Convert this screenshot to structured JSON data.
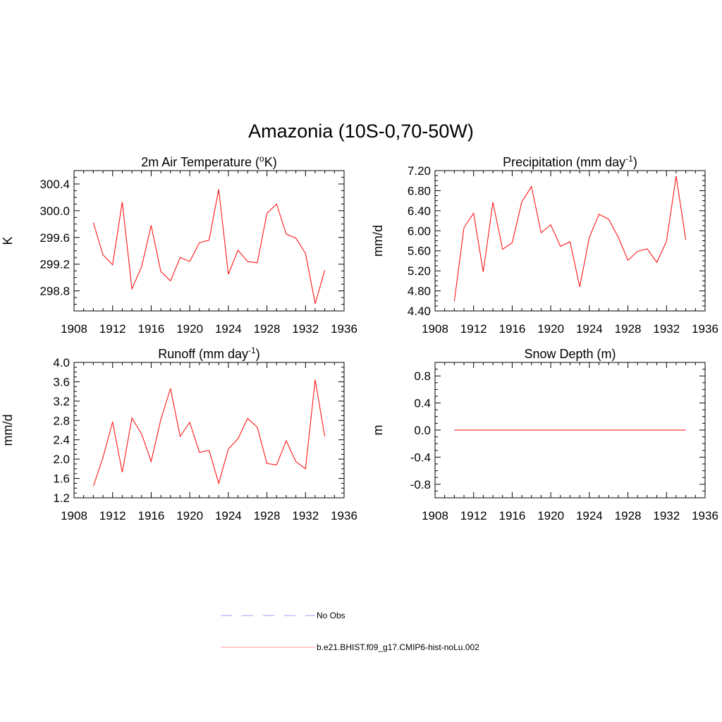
{
  "figure_title": "Amazonia (10S-0,70-50W)",
  "colors": {
    "model": "#ff0000",
    "obs": "#a0a0ff"
  },
  "legend": [
    {
      "label": "No Obs",
      "style": "dashed",
      "color": "#a0a0ff"
    },
    {
      "label": "b.e21.BHIST.f09_g17.CMIP6-hist-noLu.002",
      "style": "solid",
      "color": "#ff9a9a"
    }
  ],
  "chart_data": [
    {
      "type": "line",
      "title": "2m Air Temperature (",
      "title_super": "o",
      "title_after": "K)",
      "ylabel": "K",
      "xlim": [
        1908,
        1936
      ],
      "ylim": [
        298.5,
        300.6
      ],
      "xticks": [
        "1908",
        "1912",
        "1916",
        "1920",
        "1924",
        "1928",
        "1932",
        "1936"
      ],
      "yticks": [
        "298.8",
        "299.2",
        "299.6",
        "300.0",
        "300.4"
      ],
      "x": [
        1910,
        1911,
        1912,
        1913,
        1914,
        1915,
        1916,
        1917,
        1918,
        1919,
        1920,
        1921,
        1922,
        1923,
        1924,
        1925,
        1926,
        1927,
        1928,
        1929,
        1930,
        1931,
        1932,
        1933,
        1934
      ],
      "values": [
        299.82,
        299.34,
        299.19,
        300.13,
        298.83,
        299.16,
        299.78,
        299.09,
        298.95,
        299.3,
        299.24,
        299.52,
        299.56,
        300.32,
        299.05,
        299.41,
        299.24,
        299.22,
        299.96,
        300.1,
        299.65,
        299.59,
        299.36,
        298.61,
        299.11
      ]
    },
    {
      "type": "line",
      "title": "Precipitation (mm day",
      "title_super": "-1",
      "title_after": ")",
      "ylabel": "mm/d",
      "xlim": [
        1908,
        1936
      ],
      "ylim": [
        4.4,
        7.2
      ],
      "xticks": [
        "1908",
        "1912",
        "1916",
        "1920",
        "1924",
        "1928",
        "1932",
        "1936"
      ],
      "yticks": [
        "4.40",
        "4.80",
        "5.20",
        "5.60",
        "6.00",
        "6.40",
        "6.80",
        "7.20"
      ],
      "x": [
        1910,
        1911,
        1912,
        1913,
        1914,
        1915,
        1916,
        1917,
        1918,
        1919,
        1920,
        1921,
        1922,
        1923,
        1924,
        1925,
        1926,
        1927,
        1928,
        1929,
        1930,
        1931,
        1932,
        1933,
        1934
      ],
      "values": [
        4.6,
        6.06,
        6.35,
        5.18,
        6.57,
        5.63,
        5.76,
        6.58,
        6.88,
        5.96,
        6.12,
        5.69,
        5.78,
        4.88,
        5.87,
        6.33,
        6.23,
        5.87,
        5.41,
        5.59,
        5.64,
        5.37,
        5.79,
        7.09,
        5.82
      ]
    },
    {
      "type": "line",
      "title": "Runoff (mm day",
      "title_super": "-1",
      "title_after": ")",
      "ylabel": "mm/d",
      "xlim": [
        1908,
        1936
      ],
      "ylim": [
        1.2,
        4.0
      ],
      "xticks": [
        "1908",
        "1912",
        "1916",
        "1920",
        "1924",
        "1928",
        "1932",
        "1936"
      ],
      "yticks": [
        "1.2",
        "1.6",
        "2.0",
        "2.4",
        "2.8",
        "3.2",
        "3.6",
        "4.0"
      ],
      "x": [
        1910,
        1911,
        1912,
        1913,
        1914,
        1915,
        1916,
        1917,
        1918,
        1919,
        1920,
        1921,
        1922,
        1923,
        1924,
        1925,
        1926,
        1927,
        1928,
        1929,
        1930,
        1931,
        1932,
        1933,
        1934
      ],
      "values": [
        1.44,
        2.03,
        2.77,
        1.73,
        2.85,
        2.52,
        1.95,
        2.82,
        3.46,
        2.47,
        2.76,
        2.14,
        2.18,
        1.5,
        2.21,
        2.42,
        2.84,
        2.66,
        1.91,
        1.88,
        2.38,
        1.95,
        1.8,
        3.64,
        2.47
      ]
    },
    {
      "type": "line",
      "title": "Snow Depth (m)",
      "title_super": "",
      "title_after": "",
      "ylabel": "m",
      "xlim": [
        1908,
        1936
      ],
      "ylim": [
        -1.0,
        1.0
      ],
      "xticks": [
        "1908",
        "1912",
        "1916",
        "1920",
        "1924",
        "1928",
        "1932",
        "1936"
      ],
      "yticks": [
        "-0.8",
        "-0.4",
        "0.0",
        "0.4",
        "0.8"
      ],
      "x": [
        1910,
        1934
      ],
      "values": [
        0.0,
        0.0
      ]
    }
  ]
}
